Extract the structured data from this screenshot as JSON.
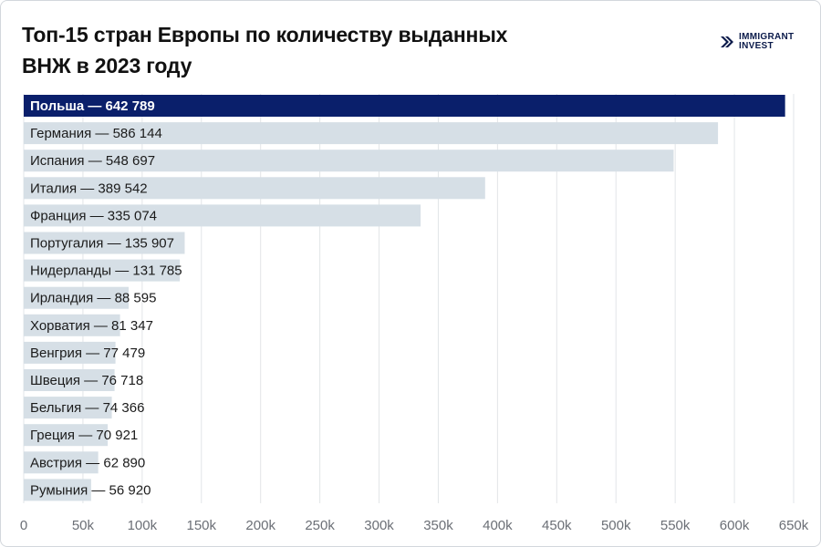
{
  "title": "Топ-15 стран Европы по количеству выданных ВНЖ в 2023 году",
  "logo": {
    "line1": "IMMIGRANT",
    "line2": "INVEST"
  },
  "colors": {
    "highlight": "#0a1f6b",
    "bar": "#d6dfe6",
    "grid": "#e2e5e8"
  },
  "chart_data": {
    "type": "bar",
    "orientation": "horizontal",
    "title": "Топ-15 стран Европы по количеству выданных ВНЖ в 2023 году",
    "xlabel": "",
    "ylabel": "",
    "xlim": [
      0,
      650000
    ],
    "grid": true,
    "categories": [
      "Польша",
      "Германия",
      "Испания",
      "Италия",
      "Франция",
      "Португалия",
      "Нидерланды",
      "Ирландия",
      "Хорватия",
      "Венгрия",
      "Швеция",
      "Бельгия",
      "Греция",
      "Австрия",
      "Румыния"
    ],
    "values": [
      642789,
      586144,
      548697,
      389542,
      335074,
      135907,
      131785,
      88595,
      81347,
      77479,
      76718,
      74366,
      70921,
      62890,
      56920
    ],
    "labels": [
      "Польша — 642 789",
      "Германия — 586 144",
      "Испания — 548 697",
      "Италия — 389 542",
      "Франция — 335 074",
      "Португалия — 135 907",
      "Нидерланды — 131 785",
      "Ирландия — 88 595",
      "Хорватия — 81 347",
      "Венгрия — 77 479",
      "Швеция — 76 718",
      "Бельгия — 74 366",
      "Греция — 70 921",
      "Австрия — 62 890",
      "Румыния — 56 920"
    ],
    "ticks": [
      0,
      50000,
      100000,
      150000,
      200000,
      250000,
      300000,
      350000,
      400000,
      450000,
      500000,
      550000,
      600000,
      650000
    ],
    "tick_labels": [
      "0",
      "50k",
      "100k",
      "150k",
      "200k",
      "250k",
      "300k",
      "350k",
      "400k",
      "450k",
      "500k",
      "550k",
      "600k",
      "650k"
    ]
  }
}
